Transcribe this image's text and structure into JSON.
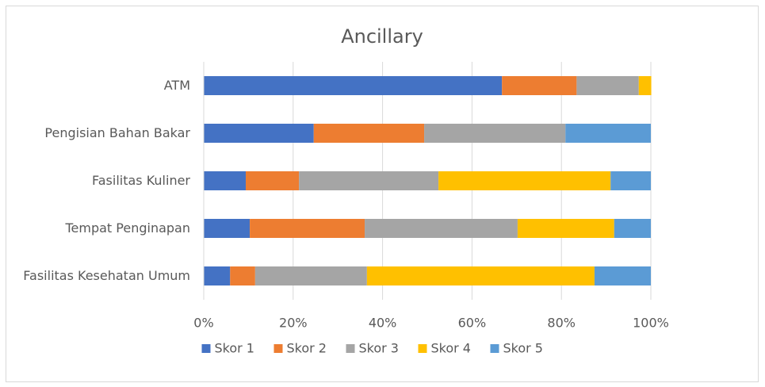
{
  "chart_data": {
    "type": "stacked_bar_horizontal",
    "title": "Ancillary",
    "categories": [
      "ATM",
      "Pengisian Bahan Bakar",
      "Fasilitas Kuliner",
      "Tempat Penginapan",
      "Fasilitas Kesehatan Umum"
    ],
    "series": [
      {
        "name": "Skor 1",
        "color": "#4472c4",
        "values": [
          66.7,
          24.6,
          9.4,
          10.3,
          5.9
        ]
      },
      {
        "name": "Skor 2",
        "color": "#ed7d31",
        "values": [
          16.7,
          24.7,
          11.9,
          25.7,
          5.6
        ]
      },
      {
        "name": "Skor 3",
        "color": "#a5a5a5",
        "values": [
          13.9,
          31.6,
          31.2,
          34.2,
          25.0
        ]
      },
      {
        "name": "Skor 4",
        "color": "#ffc000",
        "values": [
          2.8,
          0,
          38.5,
          21.6,
          50.9
        ]
      },
      {
        "name": "Skor 5",
        "color": "#5b9bd5",
        "values": [
          0,
          19.1,
          9.0,
          8.2,
          12.6
        ]
      }
    ],
    "xlim": [
      0,
      100
    ],
    "xticks": [
      {
        "value": 0,
        "label": "0%"
      },
      {
        "value": 20,
        "label": "20%"
      },
      {
        "value": 40,
        "label": "40%"
      },
      {
        "value": 60,
        "label": "60%"
      },
      {
        "value": 80,
        "label": "80%"
      },
      {
        "value": 100,
        "label": "100%"
      }
    ],
    "grid": true,
    "legend": "bottom"
  }
}
